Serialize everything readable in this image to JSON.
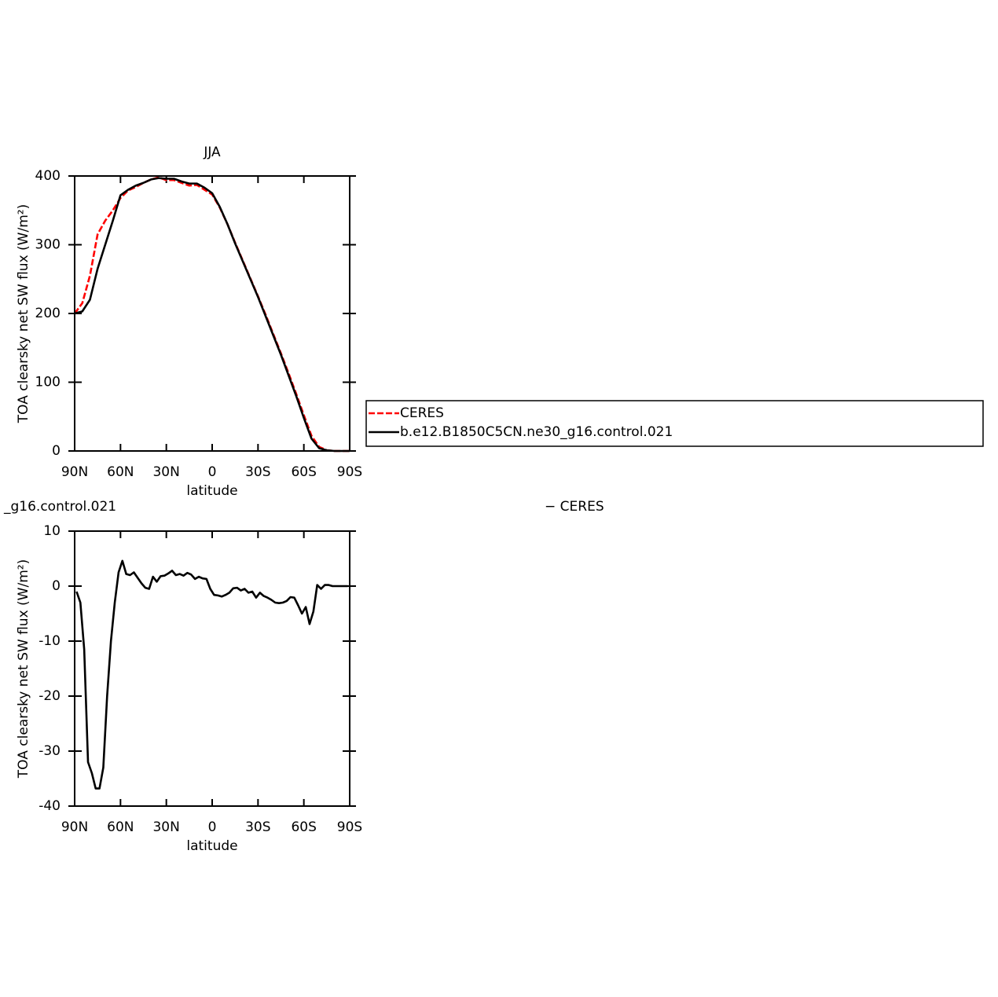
{
  "chart_data": [
    {
      "type": "line",
      "title": "JJA",
      "xlabel": "latitude",
      "ylabel": "TOA clearsky net SW flux (W/m²)",
      "x": [
        90,
        85,
        80,
        75,
        70,
        65,
        60,
        55,
        50,
        45,
        40,
        35,
        30,
        25,
        20,
        15,
        10,
        5,
        0,
        -5,
        -10,
        -15,
        -20,
        -25,
        -30,
        -35,
        -40,
        -45,
        -50,
        -55,
        -60,
        -65,
        -70,
        -75,
        -80,
        -85,
        -90
      ],
      "series": [
        {
          "name": "CERES",
          "color": "#ff0000",
          "dashed": true,
          "values": [
            200,
            215,
            255,
            315,
            335,
            350,
            368,
            379,
            384,
            390,
            395,
            398,
            394,
            394,
            390,
            386,
            387,
            380,
            373,
            354,
            330,
            303,
            277,
            251,
            225,
            198,
            170,
            142,
            113,
            83,
            52,
            22,
            6,
            1,
            0,
            0,
            0
          ]
        },
        {
          "name": "b.e12.B1850C5CN.ne30_g16.control.021",
          "color": "#000000",
          "dashed": false,
          "values": [
            200,
            203,
            220,
            265,
            300,
            335,
            372,
            380,
            386,
            390,
            395,
            397,
            396,
            396,
            392,
            389,
            389,
            383,
            375,
            355,
            330,
            302,
            276,
            250,
            224,
            196,
            168,
            140,
            110,
            80,
            48,
            18,
            4,
            1,
            0,
            0,
            0
          ]
        }
      ],
      "xlim": [
        90,
        -90
      ],
      "xticks": [
        {
          "value": 90,
          "label": "90N"
        },
        {
          "value": 60,
          "label": "60N"
        },
        {
          "value": 30,
          "label": "30N"
        },
        0,
        {
          "value": -30,
          "label": "30S"
        },
        {
          "value": -60,
          "label": "60S"
        },
        {
          "value": -90,
          "label": "90S"
        }
      ],
      "ylim": [
        0,
        400
      ],
      "yticks": [
        0,
        100,
        200,
        300,
        400
      ],
      "legend": "right"
    },
    {
      "type": "line",
      "title_left": "_g16.control.021",
      "title_right": "− CERES",
      "xlabel": "latitude",
      "ylabel": "TOA clearsky net SW flux (W/m²)",
      "x": [
        88.75,
        86.25,
        83.75,
        81.25,
        78.75,
        76.25,
        73.75,
        71.25,
        68.75,
        66.25,
        63.75,
        61.25,
        58.75,
        56.25,
        53.75,
        51.25,
        48.75,
        46.25,
        43.75,
        41.25,
        38.75,
        36.25,
        33.75,
        31.25,
        28.75,
        26.25,
        23.75,
        21.25,
        18.75,
        16.25,
        13.75,
        11.25,
        8.75,
        6.25,
        3.75,
        1.25,
        -1.25,
        -3.75,
        -6.25,
        -8.75,
        -11.25,
        -13.75,
        -16.25,
        -18.75,
        -21.25,
        -23.75,
        -26.25,
        -28.75,
        -31.25,
        -33.75,
        -36.25,
        -38.75,
        -41.25,
        -43.75,
        -46.25,
        -48.75,
        -51.25,
        -53.75,
        -56.25,
        -58.75,
        -61.25,
        -63.75,
        -66.25,
        -68.75,
        -71.25,
        -73.75,
        -76.25,
        -78.75,
        -81.25,
        -83.75,
        -86.25,
        -88.75
      ],
      "series": [
        {
          "color": "#000000",
          "dashed": false,
          "values": [
            -1,
            -3,
            -11.5,
            -32,
            -34,
            -36.8,
            -36.8,
            -33,
            -20,
            -10,
            -3,
            2.5,
            4.6,
            2.2,
            2,
            2.5,
            1.5,
            0.5,
            -0.3,
            -0.5,
            1.7,
            0.8,
            1.8,
            1.9,
            2.3,
            2.8,
            2,
            2.2,
            1.9,
            2.4,
            2.1,
            1.3,
            1.7,
            1.4,
            1.3,
            -0.5,
            -1.6,
            -1.7,
            -1.9,
            -1.6,
            -1.2,
            -0.4,
            -0.3,
            -0.8,
            -0.5,
            -1.2,
            -1,
            -2.1,
            -1.2,
            -1.8,
            -2.1,
            -2.5,
            -3,
            -3.1,
            -3,
            -2.7,
            -2,
            -2.1,
            -3.5,
            -5,
            -3.8,
            -6.9,
            -4.6,
            0.2,
            -0.5,
            0.2,
            0.2,
            0,
            0,
            0,
            0,
            0
          ]
        }
      ],
      "xlim": [
        90,
        -90
      ],
      "xticks": [
        {
          "value": 90,
          "label": "90N"
        },
        {
          "value": 60,
          "label": "60N"
        },
        {
          "value": 30,
          "label": "30N"
        },
        0,
        {
          "value": -30,
          "label": "30S"
        },
        {
          "value": -60,
          "label": "60S"
        },
        {
          "value": -90,
          "label": "90S"
        }
      ],
      "ylim": [
        -40,
        10
      ],
      "yticks": [
        -40,
        -30,
        -20,
        -10,
        0,
        10
      ]
    }
  ]
}
